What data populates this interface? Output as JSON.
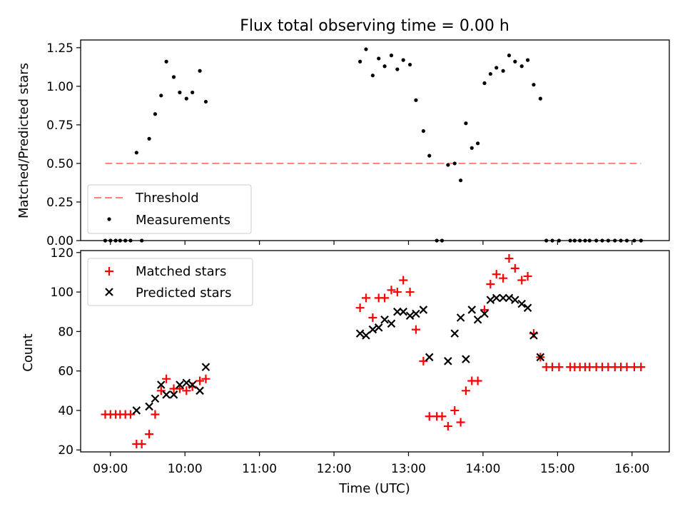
{
  "title": "Flux total observing time = 0.00 h",
  "chart_data": [
    {
      "type": "scatter",
      "ylabel": "Matched/Predicted stars",
      "xlim": [
        8.6,
        16.5
      ],
      "ylim": [
        0,
        1.3
      ],
      "yticks": [
        0.0,
        0.25,
        0.5,
        0.75,
        1.0,
        1.25
      ],
      "ytick_labels": [
        "0.00",
        "0.25",
        "0.50",
        "0.75",
        "1.00",
        "1.25"
      ],
      "legend": {
        "position": "lower-left",
        "entries": [
          {
            "label": "Threshold",
            "color": "#ff7f7f",
            "style": "dashed-line"
          },
          {
            "label": "Measurements",
            "color": "#000000",
            "style": "dot"
          }
        ]
      },
      "threshold": {
        "y": 0.5,
        "x": [
          8.93,
          16.12
        ]
      },
      "measurements": {
        "x": [
          8.93,
          9.0,
          9.07,
          9.13,
          9.2,
          9.27,
          9.35,
          9.42,
          9.52,
          9.6,
          9.68,
          9.75,
          9.85,
          9.93,
          10.02,
          10.1,
          10.2,
          10.28,
          12.35,
          12.43,
          12.52,
          12.6,
          12.68,
          12.77,
          12.85,
          12.93,
          13.02,
          13.1,
          13.2,
          13.28,
          13.38,
          13.45,
          13.53,
          13.62,
          13.7,
          13.77,
          13.85,
          13.93,
          14.02,
          14.1,
          14.18,
          14.27,
          14.35,
          14.43,
          14.52,
          14.6,
          14.68,
          14.77,
          14.85,
          14.93,
          15.02,
          15.17,
          15.23,
          15.3,
          15.37,
          15.43,
          15.52,
          15.6,
          15.68,
          15.77,
          15.85,
          15.93,
          16.03,
          16.12
        ],
        "y": [
          0.0,
          0.0,
          0.0,
          0.0,
          0.0,
          0.0,
          0.57,
          0.0,
          0.66,
          0.82,
          0.94,
          1.16,
          1.06,
          0.96,
          0.92,
          0.96,
          1.1,
          0.9,
          1.16,
          1.24,
          1.07,
          1.18,
          1.13,
          1.2,
          1.11,
          1.17,
          1.14,
          0.91,
          0.71,
          0.55,
          0.0,
          0.0,
          0.49,
          0.5,
          0.39,
          0.76,
          0.6,
          0.63,
          1.02,
          1.08,
          1.12,
          1.1,
          1.2,
          1.16,
          1.13,
          1.17,
          1.01,
          0.92,
          0.0,
          0.0,
          0.0,
          0.0,
          0.0,
          0.0,
          0.0,
          0.0,
          0.0,
          0.0,
          0.0,
          0.0,
          0.0,
          0.0,
          0.0,
          0.0
        ]
      }
    },
    {
      "type": "scatter",
      "xlabel": "Time (UTC)",
      "ylabel": "Count",
      "xlim": [
        8.6,
        16.5
      ],
      "ylim": [
        19,
        121
      ],
      "yticks": [
        20,
        40,
        60,
        80,
        100,
        120
      ],
      "ytick_labels": [
        "20",
        "40",
        "60",
        "80",
        "100",
        "120"
      ],
      "xticks": [
        9,
        10,
        11,
        12,
        13,
        14,
        15,
        16
      ],
      "xtick_labels": [
        "09:00",
        "10:00",
        "11:00",
        "12:00",
        "13:00",
        "14:00",
        "15:00",
        "16:00"
      ],
      "legend": {
        "position": "upper-left",
        "entries": [
          {
            "label": "Matched stars",
            "color": "#ff0000",
            "marker": "plus"
          },
          {
            "label": "Predicted stars",
            "color": "#000000",
            "marker": "x"
          }
        ]
      },
      "series": [
        {
          "name": "Matched stars",
          "color": "#ff0000",
          "marker": "plus",
          "x": [
            8.93,
            9.0,
            9.07,
            9.13,
            9.2,
            9.27,
            9.35,
            9.42,
            9.52,
            9.6,
            9.68,
            9.75,
            9.85,
            9.93,
            10.02,
            10.1,
            10.2,
            10.28,
            12.35,
            12.43,
            12.52,
            12.6,
            12.68,
            12.77,
            12.85,
            12.93,
            13.02,
            13.1,
            13.2,
            13.28,
            13.38,
            13.45,
            13.53,
            13.62,
            13.7,
            13.77,
            13.85,
            13.93,
            14.02,
            14.1,
            14.18,
            14.27,
            14.35,
            14.43,
            14.52,
            14.6,
            14.68,
            14.77,
            14.85,
            14.93,
            15.02,
            15.17,
            15.23,
            15.3,
            15.37,
            15.43,
            15.52,
            15.6,
            15.68,
            15.77,
            15.85,
            15.93,
            16.03,
            16.12
          ],
          "y": [
            38,
            38,
            38,
            38,
            38,
            38,
            23,
            23,
            28,
            38,
            50,
            56,
            51,
            51,
            50,
            52,
            55,
            56,
            92,
            97,
            87,
            97,
            97,
            101,
            100,
            106,
            100,
            81,
            65,
            37,
            37,
            37,
            32,
            40,
            34,
            50,
            55,
            55,
            91,
            104,
            109,
            107,
            117,
            112,
            106,
            108,
            79,
            67,
            62,
            62,
            62,
            62,
            62,
            62,
            62,
            62,
            62,
            62,
            62,
            62,
            62,
            62,
            62,
            62
          ]
        },
        {
          "name": "Predicted stars",
          "color": "#000000",
          "marker": "x",
          "x": [
            9.35,
            9.52,
            9.6,
            9.68,
            9.75,
            9.85,
            9.93,
            10.02,
            10.1,
            10.2,
            10.28,
            12.35,
            12.43,
            12.52,
            12.6,
            12.68,
            12.77,
            12.85,
            12.93,
            13.02,
            13.1,
            13.2,
            13.28,
            13.53,
            13.62,
            13.7,
            13.77,
            13.85,
            13.93,
            14.02,
            14.1,
            14.18,
            14.27,
            14.35,
            14.43,
            14.52,
            14.6,
            14.68,
            14.77
          ],
          "y": [
            40,
            42,
            46,
            53,
            48,
            48,
            53,
            54,
            53,
            50,
            62,
            79,
            78,
            81,
            82,
            86,
            84,
            90,
            90,
            88,
            89,
            91,
            67,
            65,
            79,
            87,
            66,
            91,
            86,
            89,
            96,
            97,
            97,
            97,
            96,
            94,
            92,
            78,
            67
          ]
        }
      ]
    }
  ]
}
